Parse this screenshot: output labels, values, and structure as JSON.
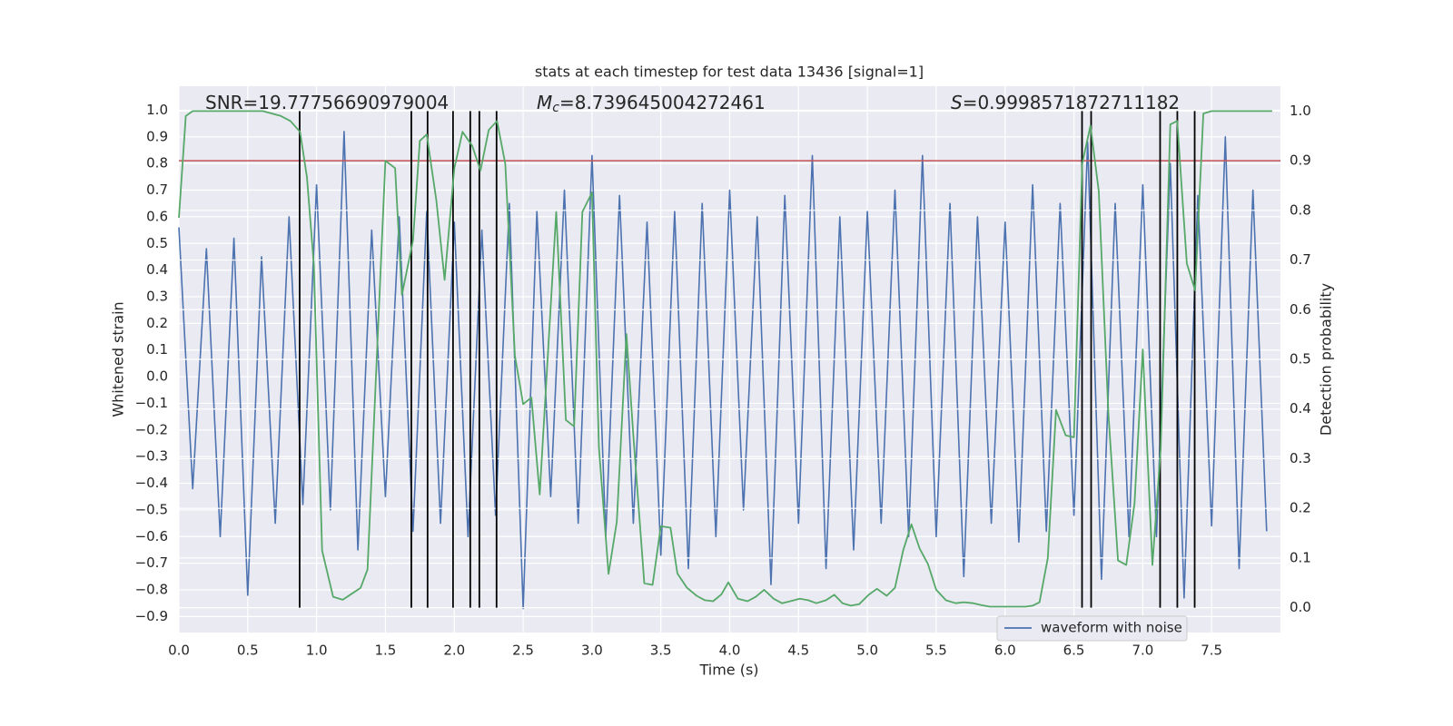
{
  "chart_data": {
    "type": "line",
    "title": "stats at each timestep for test data 13436 [signal=1]",
    "xlabel": "Time (s)",
    "ylabel": "Whitened strain",
    "y2label": "Detection probability",
    "grid": true,
    "xlim": [
      0,
      8.0
    ],
    "ylim": [
      -0.96,
      1.09
    ],
    "y2lim": [
      -0.05,
      1.05
    ],
    "xticks": [
      {
        "value": 0,
        "label": "0.0"
      },
      0.5,
      {
        "value": 1,
        "label": "1.0"
      },
      1.5,
      {
        "value": 2,
        "label": "2.0"
      },
      2.5,
      {
        "value": 3,
        "label": "3.0"
      },
      3.5,
      {
        "value": 4,
        "label": "4.0"
      },
      4.5,
      {
        "value": 5,
        "label": "5.0"
      },
      5.5,
      {
        "value": 6,
        "label": "6.0"
      },
      6.5,
      {
        "value": 7,
        "label": "7.0"
      },
      7.5
    ],
    "yticks": [
      {
        "value": -0.9,
        "label": "−0.9"
      },
      {
        "value": -0.8,
        "label": "−0.8"
      },
      {
        "value": -0.7,
        "label": "−0.7"
      },
      {
        "value": -0.6,
        "label": "−0.6"
      },
      {
        "value": -0.5,
        "label": "−0.5"
      },
      {
        "value": -0.4,
        "label": "−0.4"
      },
      {
        "value": -0.3,
        "label": "−0.3"
      },
      {
        "value": -0.2,
        "label": "−0.2"
      },
      {
        "value": -0.1,
        "label": "−0.1"
      },
      {
        "value": 0,
        "label": "0.0"
      },
      0.1,
      0.2,
      0.3,
      0.4,
      0.5,
      0.6,
      0.7,
      0.8,
      0.9,
      {
        "value": 1,
        "label": "1.0"
      }
    ],
    "y2ticks": [
      {
        "value": 0,
        "label": "0.0"
      },
      0.1,
      0.2,
      0.3,
      0.4,
      0.5,
      0.6,
      0.7,
      0.8,
      0.9,
      {
        "value": 1,
        "label": "1.0"
      }
    ],
    "series": [
      {
        "name": "waveform with noise",
        "color": "#4c72b0",
        "x": [
          0.0,
          0.1,
          0.2,
          0.3,
          0.4,
          0.5,
          0.6,
          0.7,
          0.8,
          0.9,
          1.0,
          1.1,
          1.2,
          1.3,
          1.4,
          1.5,
          1.6,
          1.7,
          1.8,
          1.9,
          2.0,
          2.1,
          2.2,
          2.3,
          2.4,
          2.5,
          2.6,
          2.7,
          2.8,
          2.9,
          3.0,
          3.1,
          3.2,
          3.3,
          3.4,
          3.5,
          3.6,
          3.7,
          3.8,
          3.9,
          4.0,
          4.1,
          4.2,
          4.3,
          4.4,
          4.5,
          4.6,
          4.7,
          4.8,
          4.9,
          5.0,
          5.1,
          5.2,
          5.3,
          5.4,
          5.5,
          5.6,
          5.7,
          5.8,
          5.9,
          6.0,
          6.1,
          6.2,
          6.3,
          6.4,
          6.5,
          6.6,
          6.7,
          6.8,
          6.9,
          7.0,
          7.1,
          7.2,
          7.3,
          7.4,
          7.5,
          7.6,
          7.7,
          7.8,
          7.9
        ],
        "values": [
          0.56,
          -0.42,
          0.48,
          -0.6,
          0.52,
          -0.82,
          0.45,
          -0.55,
          0.6,
          -0.48,
          0.72,
          -0.5,
          0.92,
          -0.65,
          0.55,
          -0.45,
          0.6,
          -0.58,
          0.62,
          -0.55,
          0.58,
          -0.6,
          0.55,
          -0.52,
          0.65,
          -0.87,
          0.62,
          -0.45,
          0.7,
          -0.55,
          0.83,
          -0.6,
          0.68,
          -0.55,
          0.58,
          -0.67,
          0.62,
          -0.72,
          0.65,
          -0.6,
          0.7,
          -0.5,
          0.6,
          -0.78,
          0.68,
          -0.55,
          0.83,
          -0.72,
          0.6,
          -0.65,
          0.62,
          -0.55,
          0.7,
          -0.6,
          0.83,
          -0.6,
          0.65,
          -0.75,
          0.6,
          -0.55,
          0.58,
          -0.62,
          0.72,
          -0.58,
          0.65,
          -0.52,
          0.88,
          -0.76,
          0.65,
          -0.6,
          0.72,
          -0.6,
          0.8,
          -0.83,
          0.68,
          -0.56,
          0.9,
          -0.72,
          0.7,
          -0.58
        ]
      },
      {
        "color": "#55a868",
        "axis": "y2",
        "x": [
          0,
          0.05,
          0.1,
          0.61,
          0.74,
          0.81,
          0.88,
          0.93,
          0.98,
          1.04,
          1.12,
          1.19,
          1.32,
          1.37,
          1.5,
          1.57,
          1.62,
          1.7,
          1.75,
          1.8,
          1.87,
          1.93,
          2.0,
          2.06,
          2.13,
          2.19,
          2.25,
          2.31,
          2.37,
          2.44,
          2.5,
          2.56,
          2.62,
          2.74,
          2.81,
          2.87,
          2.93,
          3.0,
          3.05,
          3.12,
          3.18,
          3.25,
          3.3,
          3.38,
          3.44,
          3.5,
          3.57,
          3.62,
          3.69,
          3.76,
          3.82,
          3.88,
          3.94,
          3.99,
          4.06,
          4.13,
          4.19,
          4.25,
          4.32,
          4.38,
          4.44,
          4.51,
          4.57,
          4.63,
          4.7,
          4.76,
          4.82,
          4.88,
          4.94,
          5.01,
          5.07,
          5.14,
          5.2,
          5.26,
          5.32,
          5.38,
          5.44,
          5.5,
          5.57,
          5.64,
          5.7,
          5.77,
          5.83,
          5.89,
          5.95,
          6.02,
          6.08,
          6.15,
          6.2,
          6.25,
          6.31,
          6.37,
          6.44,
          6.5,
          6.56,
          6.62,
          6.68,
          6.75,
          6.82,
          6.88,
          6.94,
          7.0,
          7.07,
          7.13,
          7.2,
          7.25,
          7.32,
          7.38,
          7.44,
          7.5,
          7.94
        ],
        "values": [
          0.785,
          0.99,
          1.0,
          1.0,
          0.99,
          0.98,
          0.958,
          0.867,
          0.69,
          0.115,
          0.022,
          0.016,
          0.04,
          0.077,
          0.9,
          0.885,
          0.63,
          0.74,
          0.94,
          0.953,
          0.82,
          0.66,
          0.885,
          0.958,
          0.93,
          0.88,
          0.962,
          0.98,
          0.894,
          0.507,
          0.41,
          0.423,
          0.228,
          0.797,
          0.378,
          0.365,
          0.797,
          0.836,
          0.323,
          0.068,
          0.173,
          0.551,
          0.347,
          0.049,
          0.046,
          0.164,
          0.161,
          0.069,
          0.04,
          0.024,
          0.015,
          0.013,
          0.027,
          0.051,
          0.018,
          0.013,
          0.022,
          0.036,
          0.018,
          0.009,
          0.013,
          0.018,
          0.015,
          0.009,
          0.015,
          0.026,
          0.009,
          0.004,
          0.007,
          0.026,
          0.038,
          0.024,
          0.04,
          0.115,
          0.168,
          0.119,
          0.088,
          0.036,
          0.015,
          0.009,
          0.011,
          0.009,
          0.005,
          0.002,
          0.002,
          0.002,
          0.002,
          0.002,
          0.004,
          0.011,
          0.1,
          0.398,
          0.347,
          0.343,
          0.894,
          0.971,
          0.839,
          0.392,
          0.095,
          0.086,
          0.21,
          0.52,
          0.086,
          0.319,
          0.973,
          0.98,
          0.693,
          0.639,
          0.995,
          1.0,
          1.0
        ]
      }
    ],
    "hlines": [
      {
        "value": 0.9,
        "axis": "y2",
        "color": "#c44e52"
      }
    ],
    "vlines": {
      "x": [
        0.877,
        1.688,
        1.806,
        1.991,
        2.116,
        2.182,
        2.307,
        6.559,
        6.625,
        7.126,
        7.251,
        7.377
      ],
      "ymin": 0,
      "ymax": 1,
      "axis": "y2",
      "color": "#000000"
    },
    "annotations": [
      {
        "parts": [
          {
            "text": "SNR=19.77756690979004"
          }
        ]
      },
      {
        "parts": [
          {
            "text": "M",
            "style": "italic"
          },
          {
            "text": "c",
            "style": "sub"
          },
          {
            "text": "=8.739645004272461"
          }
        ]
      },
      {
        "parts": [
          {
            "text": "S",
            "style": "italic"
          },
          {
            "text": "=0.9998571872711182"
          }
        ]
      }
    ]
  }
}
